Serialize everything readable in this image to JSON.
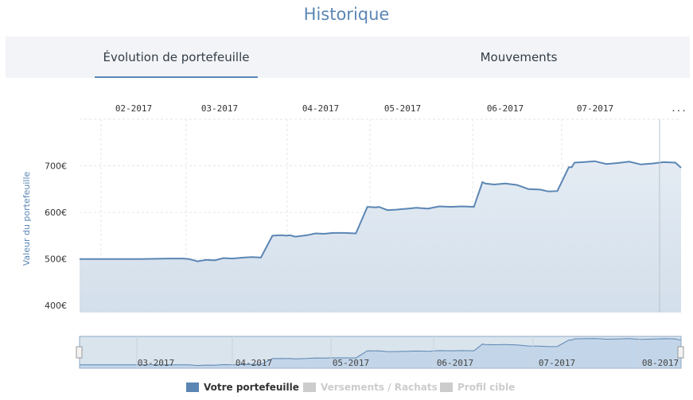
{
  "page": {
    "title": "Historique"
  },
  "tabs": [
    {
      "label": "Évolution de portefeuille",
      "active": true
    },
    {
      "label": "Mouvements",
      "active": false
    }
  ],
  "colors": {
    "accent": "#5b86b4",
    "series_line": "#5b86b4",
    "series_fill": "#e6edf5",
    "legend_disabled": "#cccccc",
    "grid": "#e2e6ea",
    "navigator_fill": "#dbe7f5"
  },
  "chart_data": {
    "type": "area",
    "ylabel": "Valeur du portefeuille",
    "ylim": [
      385,
      800
    ],
    "yticks": [
      "400€",
      "500€",
      "600€",
      "700€"
    ],
    "ytick_values": [
      400,
      500,
      600,
      700
    ],
    "x_tick_labels": [
      "02-2017",
      "03-2017",
      "04-2017",
      "05-2017",
      "06-2017",
      "07-2017",
      "..."
    ],
    "navigator_tick_labels": [
      "03-2017",
      "04-2017",
      "05-2017",
      "06-2017",
      "07-2017",
      "08-2017"
    ],
    "grid": true,
    "legend_position": "bottom",
    "series": [
      {
        "name": "Votre portefeuille",
        "active": true,
        "x": [
          "2017-01-15",
          "2017-01-25",
          "2017-02-05",
          "2017-02-15",
          "2017-02-20",
          "2017-02-22",
          "2017-02-25",
          "2017-02-28",
          "2017-03-03",
          "2017-03-06",
          "2017-03-09",
          "2017-03-13",
          "2017-03-16",
          "2017-03-19",
          "2017-03-23",
          "2017-03-26",
          "2017-03-28",
          "2017-03-29",
          "2017-03-31",
          "2017-04-04",
          "2017-04-07",
          "2017-04-10",
          "2017-04-13",
          "2017-04-17",
          "2017-04-21",
          "2017-04-25",
          "2017-04-28",
          "2017-04-29",
          "2017-05-02",
          "2017-05-05",
          "2017-05-09",
          "2017-05-12",
          "2017-05-16",
          "2017-05-20",
          "2017-05-24",
          "2017-05-28",
          "2017-06-01",
          "2017-06-04",
          "2017-06-05",
          "2017-06-08",
          "2017-06-12",
          "2017-06-16",
          "2017-06-20",
          "2017-06-24",
          "2017-06-27",
          "2017-06-30",
          "2017-07-04",
          "2017-07-05",
          "2017-07-06",
          "2017-07-09",
          "2017-07-13",
          "2017-07-17",
          "2017-07-21",
          "2017-07-25",
          "2017-07-29",
          "2017-08-02",
          "2017-08-06",
          "2017-08-10",
          "2017-08-12"
        ],
        "values": [
          500,
          500,
          500,
          501,
          501,
          500,
          495,
          498,
          497,
          502,
          501,
          503,
          504,
          503,
          550,
          551,
          550,
          551,
          548,
          551,
          555,
          554,
          556,
          556,
          555,
          612,
          611,
          612,
          605,
          606,
          608,
          610,
          608,
          613,
          612,
          613,
          612,
          665,
          662,
          660,
          662,
          659,
          650,
          649,
          645,
          646,
          697,
          697,
          707,
          708,
          710,
          704,
          706,
          709,
          703,
          705,
          708,
          707,
          696
        ]
      },
      {
        "name": "Versements / Rachats",
        "active": false
      },
      {
        "name": "Profil cible",
        "active": false
      }
    ]
  }
}
